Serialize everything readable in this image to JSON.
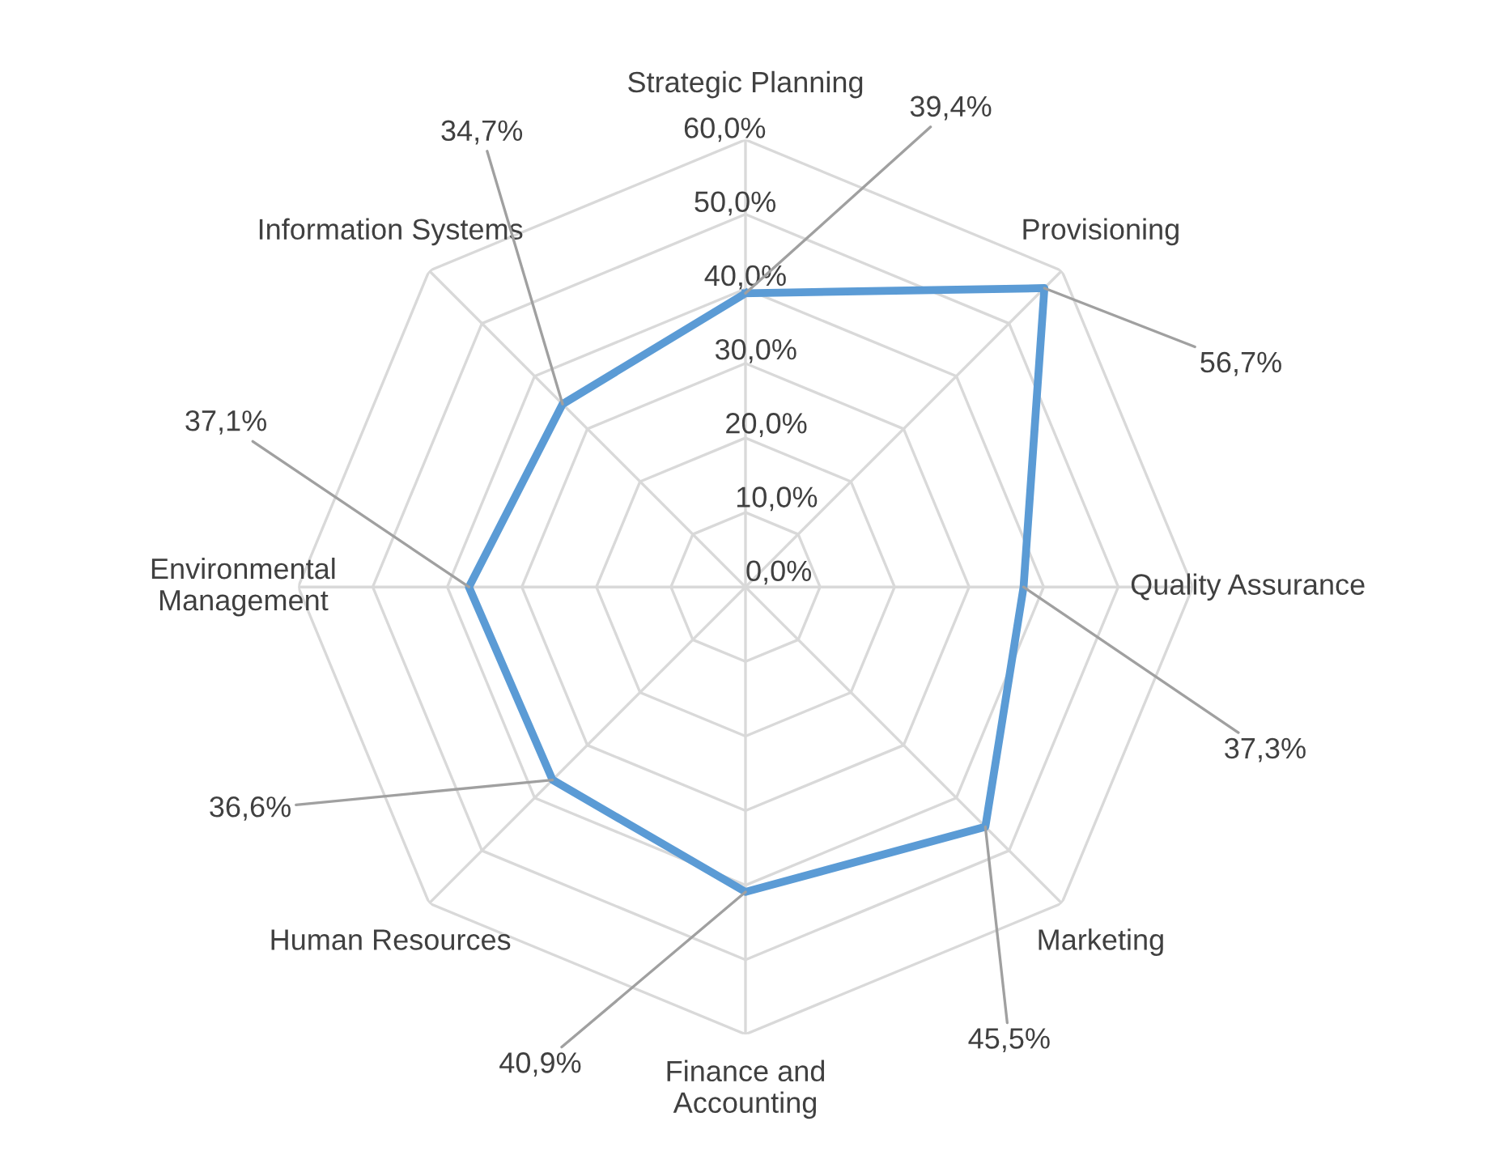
{
  "chart_data": {
    "type": "radar",
    "categories": [
      "Strategic Planning",
      "Provisioning",
      "Quality Assurance",
      "Marketing",
      "Finance and\nAccounting",
      "Human Resources",
      "Environmental\nManagement",
      "Information Systems"
    ],
    "series": [
      {
        "color": "#5b9bd5",
        "values": [
          39.4,
          56.7,
          37.3,
          45.5,
          40.9,
          36.6,
          37.1,
          34.7
        ],
        "value_labels": [
          "39,4%",
          "56,7%",
          "37,3%",
          "45,5%",
          "40,9%",
          "36,6%",
          "37,1%",
          "34,7%"
        ]
      }
    ],
    "ylim": [
      0,
      60
    ],
    "yticks": [
      {
        "value": 0,
        "label": "0,0%"
      },
      {
        "value": 10,
        "label": "10,0%"
      },
      {
        "value": 20,
        "label": "20,0%"
      },
      {
        "value": 30,
        "label": "30,0%"
      },
      {
        "value": 40,
        "label": "40,0%"
      },
      {
        "value": 50,
        "label": "50,0%"
      },
      {
        "value": 60,
        "label": "60,0%"
      }
    ],
    "grid": true,
    "legend": false,
    "marker": "none",
    "line_style": "solid"
  }
}
